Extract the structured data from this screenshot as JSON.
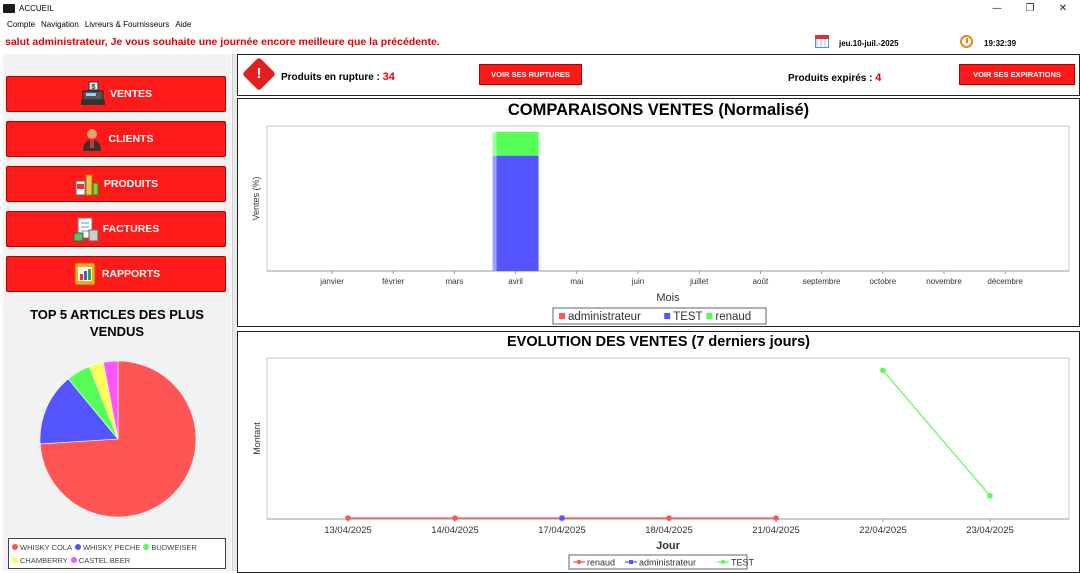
{
  "window": {
    "title": "ACCUEIL",
    "controls": {
      "minimize": "—",
      "maximize": "❐",
      "close": "✕"
    }
  },
  "menu": [
    "Compte",
    "Navigation",
    "Livreurs & Fournisseurs",
    "Aide"
  ],
  "header": {
    "greeting": "salut administrateur, Je vous souhaite une journée encore meilleure que la précédente.",
    "date": "jeu.10-juil.-2025",
    "time": "19:32:39"
  },
  "nav": [
    {
      "label": "VENTES",
      "icon": "cash-register-icon"
    },
    {
      "label": "CLIENTS",
      "icon": "customer-icon"
    },
    {
      "label": "PRODUITS",
      "icon": "products-icon"
    },
    {
      "label": "FACTURES",
      "icon": "invoice-icon"
    },
    {
      "label": "RAPPORTS",
      "icon": "reports-icon"
    }
  ],
  "top5": {
    "title": "TOP 5 ARTICLES DES PLUS VENDUS",
    "chart_data": {
      "type": "pie",
      "labels": [
        "WHISKY COLA",
        "WHISKY PECHE",
        "BUDWEISER",
        "CHAMBERRY",
        "CASTEL BEER"
      ],
      "values": [
        74,
        15,
        5,
        3,
        3
      ],
      "colors": [
        "#ff5555",
        "#5555ff",
        "#55ff55",
        "#ffff55",
        "#ff55ff"
      ],
      "legend": "bottom"
    }
  },
  "alerts": {
    "rupture_label": "Produits en rupture : ",
    "rupture_count": "34",
    "rupture_button": "VOIR SES RUPTURES",
    "expires_label": "Produits expirés : ",
    "expires_count": "4",
    "expires_button": "VOIR SES EXPIRATIONS"
  },
  "chart_data": [
    {
      "type": "bar",
      "stacked": true,
      "title": "COMPARAISONS VENTES (Normalisé)",
      "xlabel": "Mois",
      "ylabel": "Ventes (%)",
      "categories": [
        "janvier",
        "février",
        "mars",
        "avril",
        "mai",
        "juin",
        "juillet",
        "août",
        "septembre",
        "octobre",
        "novembre",
        "décembre"
      ],
      "series": [
        {
          "name": "administrateur",
          "color": "#ff5555",
          "values": [
            0,
            0,
            0,
            0,
            0,
            0,
            0,
            0,
            0,
            0,
            0,
            0
          ]
        },
        {
          "name": "TEST",
          "color": "#5555ff",
          "values": [
            0,
            0,
            0,
            83,
            0,
            0,
            0,
            0,
            0,
            0,
            0,
            0
          ]
        },
        {
          "name": "renaud",
          "color": "#55ff55",
          "values": [
            0,
            0,
            0,
            17,
            0,
            0,
            0,
            0,
            0,
            0,
            0,
            0
          ]
        }
      ],
      "ylim": [
        0,
        100
      ],
      "legend": "bottom"
    },
    {
      "type": "line",
      "title": "EVOLUTION DES VENTES (7 derniers jours)",
      "xlabel": "Jour",
      "ylabel": "Montant",
      "categories": [
        "13/04/2025",
        "14/04/2025",
        "17/04/2025",
        "18/04/2025",
        "21/04/2025",
        "22/04/2025",
        "23/04/2025"
      ],
      "series": [
        {
          "name": "renaud",
          "color": "#ff5555",
          "marker": "circle",
          "values": [
            0,
            0,
            null,
            0,
            0,
            null,
            null
          ]
        },
        {
          "name": "administrateur",
          "color": "#5555ff",
          "marker": "square",
          "values": [
            null,
            null,
            0,
            null,
            null,
            null,
            null
          ]
        },
        {
          "name": "TEST",
          "color": "#55ff55",
          "marker": "circle",
          "values": [
            null,
            null,
            null,
            null,
            null,
            100,
            15
          ]
        }
      ],
      "ylim": [
        0,
        105
      ],
      "legend": "bottom"
    }
  ]
}
